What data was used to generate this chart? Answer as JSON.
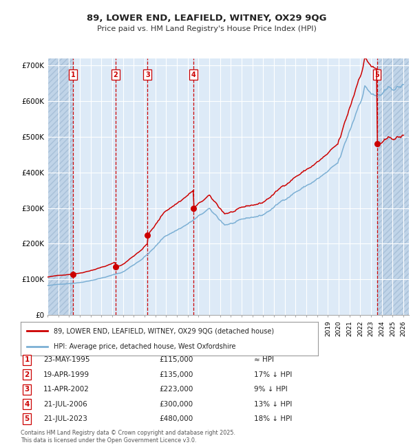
{
  "title": "89, LOWER END, LEAFIELD, WITNEY, OX29 9QG",
  "subtitle": "Price paid vs. HM Land Registry's House Price Index (HPI)",
  "sale_dates_num": [
    1995.38,
    1999.3,
    2002.27,
    2006.54,
    2023.54
  ],
  "sale_prices": [
    115000,
    135000,
    223000,
    300000,
    480000
  ],
  "sale_labels": [
    "1",
    "2",
    "3",
    "4",
    "5"
  ],
  "sale_dates_str": [
    "23-MAY-1995",
    "19-APR-1999",
    "11-APR-2002",
    "21-JUL-2006",
    "21-JUL-2023"
  ],
  "sale_prices_str": [
    "£115,000",
    "£135,000",
    "£223,000",
    "£300,000",
    "£480,000"
  ],
  "sale_hpi_str": [
    "≈ HPI",
    "17% ↓ HPI",
    "9% ↓ HPI",
    "13% ↓ HPI",
    "18% ↓ HPI"
  ],
  "price_line_color": "#cc0000",
  "hpi_line_color": "#7bafd4",
  "vline_color": "#cc0000",
  "point_color": "#cc0000",
  "bg_color": "#ddeaf7",
  "hatch_color": "#c0d4e8",
  "grid_color": "#ffffff",
  "ylim": [
    0,
    720000
  ],
  "ytick_vals": [
    0,
    100000,
    200000,
    300000,
    400000,
    500000,
    600000,
    700000
  ],
  "ytick_labels": [
    "£0",
    "£100K",
    "£200K",
    "£300K",
    "£400K",
    "£500K",
    "£600K",
    "£700K"
  ],
  "xlim_start": 1993.0,
  "xlim_end": 2026.5,
  "legend1_label": "89, LOWER END, LEAFIELD, WITNEY, OX29 9QG (detached house)",
  "legend2_label": "HPI: Average price, detached house, West Oxfordshire",
  "footer": "Contains HM Land Registry data © Crown copyright and database right 2025.\nThis data is licensed under the Open Government Licence v3.0."
}
